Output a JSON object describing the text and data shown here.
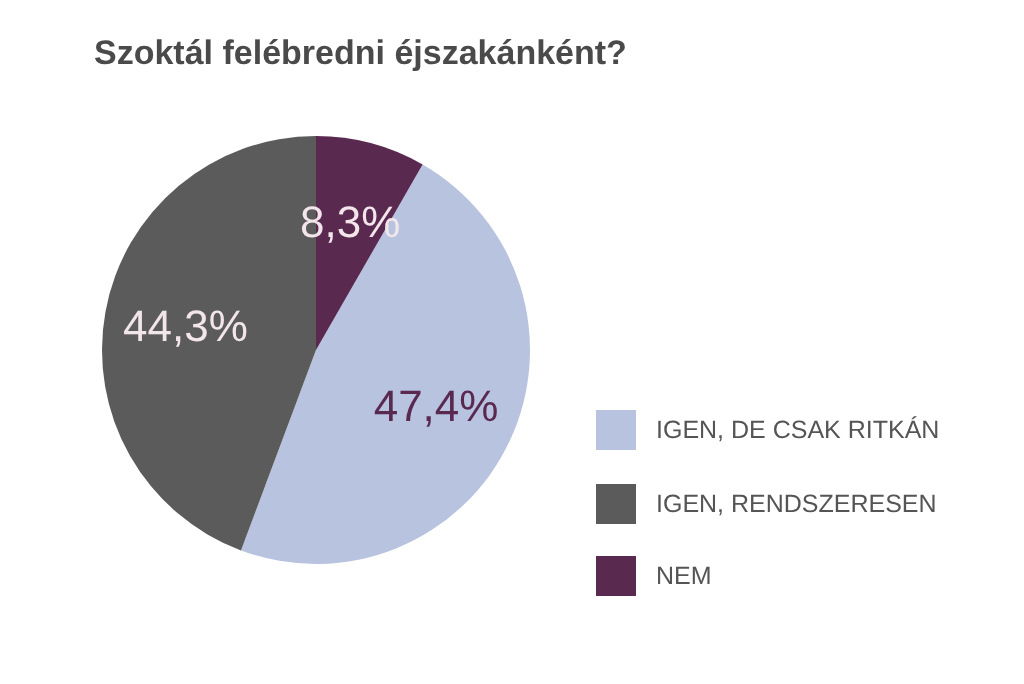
{
  "chart_data": {
    "type": "pie",
    "title": "Szoktál felébredni éjszakánként?",
    "categories": [
      "IGEN, DE CSAK RITKÁN",
      "IGEN, RENDSZERESEN",
      "NEM"
    ],
    "values": [
      47.4,
      44.3,
      8.3
    ],
    "value_labels": [
      "47,4%",
      "44,3%",
      "8,3%"
    ],
    "colors": [
      "#b8c3e0",
      "#5b5b5b",
      "#5a2950"
    ],
    "legend": "right"
  }
}
